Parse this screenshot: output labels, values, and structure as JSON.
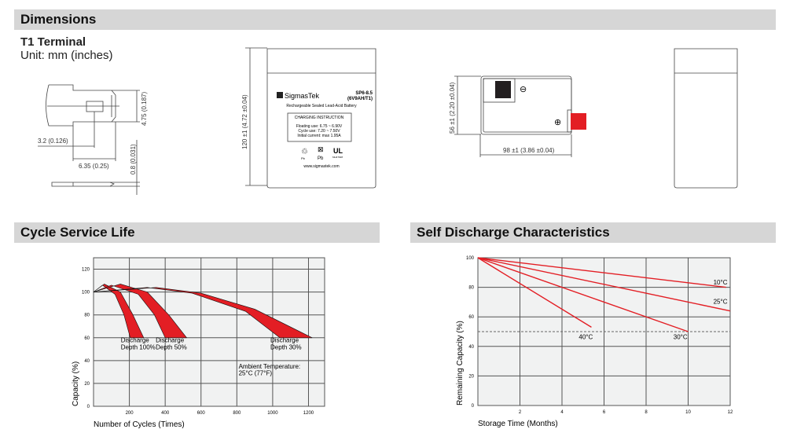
{
  "dimensions": {
    "title": "Dimensions",
    "terminal_title": "T1 Terminal",
    "unit": "Unit: mm (inches)",
    "terminal_dims": [
      "4.75 (0.187)",
      "3.2 (0.126)",
      "6.35 (0.25)",
      "0.8 (0.031)"
    ],
    "height_dim": "120 ±1 (4.72 ±0.04)",
    "width_dim": "56 ±1 (2.20 ±0.04)",
    "length_dim": "98 ±1 (3.86 ±0.04)",
    "label": {
      "brand": "SigmasTek",
      "model": "SP6-8.5",
      "model_sub": "(6V9AH/T1)",
      "type": "Rechargeable Sealed Lead-Acid Battery",
      "charging_title": "CHARGING INSTRUCTION",
      "charging_lines": [
        "Floating use: 6.75 ~ 6.90V",
        "Cycle use: 7.20 ~ 7.50V",
        "Initial current: max 1.95A"
      ],
      "pb1": "Pb",
      "pb2": "Pb",
      "cert": "MH47928",
      "website": "www.sigmastek.com"
    },
    "colors": {
      "positive": "#e31e24",
      "negative": "#231f20"
    }
  },
  "chart_data": [
    {
      "type": "area",
      "title": "Cycle Service Life",
      "xlabel": "Number of Cycles (Times)",
      "ylabel": "Capacity (%)",
      "xlim": [
        0,
        1290
      ],
      "ylim": [
        0,
        130
      ],
      "xticks": [
        200,
        400,
        600,
        800,
        1000,
        1200
      ],
      "yticks": [
        0,
        20,
        40,
        60,
        80,
        100,
        120
      ],
      "grid": true,
      "color": "#e31e24",
      "series": [
        {
          "name": "Discharge Depth 100%",
          "upper": [
            [
              0,
              100
            ],
            [
              60,
              107
            ],
            [
              150,
              100
            ],
            [
              220,
              80
            ],
            [
              280,
              60
            ]
          ],
          "lower": [
            [
              0,
              100
            ],
            [
              50,
              106
            ],
            [
              120,
              98
            ],
            [
              170,
              80
            ],
            [
              205,
              60
            ]
          ]
        },
        {
          "name": "Discharge Depth 50%",
          "upper": [
            [
              0,
              100
            ],
            [
              150,
              107
            ],
            [
              300,
              100
            ],
            [
              420,
              80
            ],
            [
              520,
              60
            ]
          ],
          "lower": [
            [
              0,
              100
            ],
            [
              100,
              106
            ],
            [
              250,
              98
            ],
            [
              340,
              80
            ],
            [
              400,
              60
            ]
          ]
        },
        {
          "name": "Discharge Depth 30%",
          "upper": [
            [
              0,
              100
            ],
            [
              350,
              104
            ],
            [
              600,
              99
            ],
            [
              900,
              85
            ],
            [
              1220,
              60
            ]
          ],
          "lower": [
            [
              0,
              100
            ],
            [
              300,
              104
            ],
            [
              550,
              99
            ],
            [
              850,
              83
            ],
            [
              1040,
              60
            ]
          ]
        }
      ],
      "annotation": [
        "Ambient Temperature:",
        "25°C (77°F)"
      ]
    },
    {
      "type": "line",
      "title": "Self Discharge Characteristics",
      "xlabel": "Storage Time (Months)",
      "ylabel": "Remaining Capacity (%)",
      "xlim": [
        0,
        12
      ],
      "ylim": [
        0,
        100
      ],
      "xticks": [
        2,
        4,
        6,
        8,
        10,
        12
      ],
      "yticks": [
        0,
        20,
        40,
        60,
        80,
        100
      ],
      "grid": true,
      "color": "#e31e24",
      "reference_line": 50,
      "series": [
        {
          "name": "10°C",
          "points": [
            [
              0,
              100
            ],
            [
              11.8,
              80
            ]
          ]
        },
        {
          "name": "25°C",
          "points": [
            [
              0,
              100
            ],
            [
              12,
              64
            ]
          ]
        },
        {
          "name": "30°C",
          "points": [
            [
              0,
              100
            ],
            [
              10,
              50
            ]
          ]
        },
        {
          "name": "40°C",
          "points": [
            [
              0,
              100
            ],
            [
              5.4,
              53
            ]
          ]
        }
      ]
    }
  ]
}
